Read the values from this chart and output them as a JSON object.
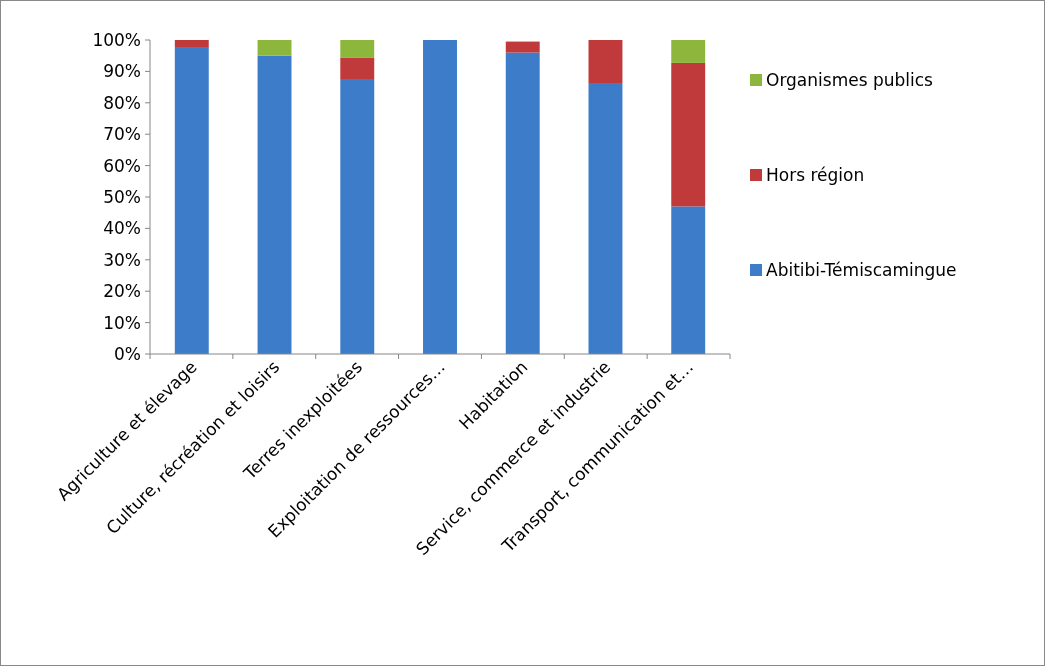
{
  "chart_data": {
    "type": "bar",
    "stacked": true,
    "categories": [
      "Agriculture et élevage",
      "Culture, récréation et loisirs",
      "Terres inexploitées",
      "Exploitation de ressources…",
      "Habitation",
      "Service, commerce et industrie",
      "Transport, communication et…"
    ],
    "series": [
      {
        "name": "Abitibi-Témiscamingue",
        "color": "#3d7cc9",
        "values": [
          97.5,
          95,
          87.3,
          100,
          96,
          86.3,
          47
        ]
      },
      {
        "name": "Hors région",
        "color": "#c0393b",
        "values": [
          2.5,
          0,
          7,
          0,
          3.5,
          13.7,
          45.7
        ]
      },
      {
        "name": "Organismes publics",
        "color": "#8db63c",
        "values": [
          0,
          5,
          5.7,
          0,
          0,
          0,
          7.3
        ]
      }
    ],
    "ylim": [
      0,
      100
    ],
    "yticks": [
      {
        "value": 0,
        "label": "0%"
      },
      {
        "value": 10,
        "label": "10%"
      },
      {
        "value": 20,
        "label": "20%"
      },
      {
        "value": 30,
        "label": "30%"
      },
      {
        "value": 40,
        "label": "40%"
      },
      {
        "value": 50,
        "label": "50%"
      },
      {
        "value": 60,
        "label": "60%"
      },
      {
        "value": 70,
        "label": "70%"
      },
      {
        "value": 80,
        "label": "80%"
      },
      {
        "value": 90,
        "label": "90%"
      },
      {
        "value": 100,
        "label": "100%"
      }
    ],
    "grid": false,
    "legend": "right"
  }
}
